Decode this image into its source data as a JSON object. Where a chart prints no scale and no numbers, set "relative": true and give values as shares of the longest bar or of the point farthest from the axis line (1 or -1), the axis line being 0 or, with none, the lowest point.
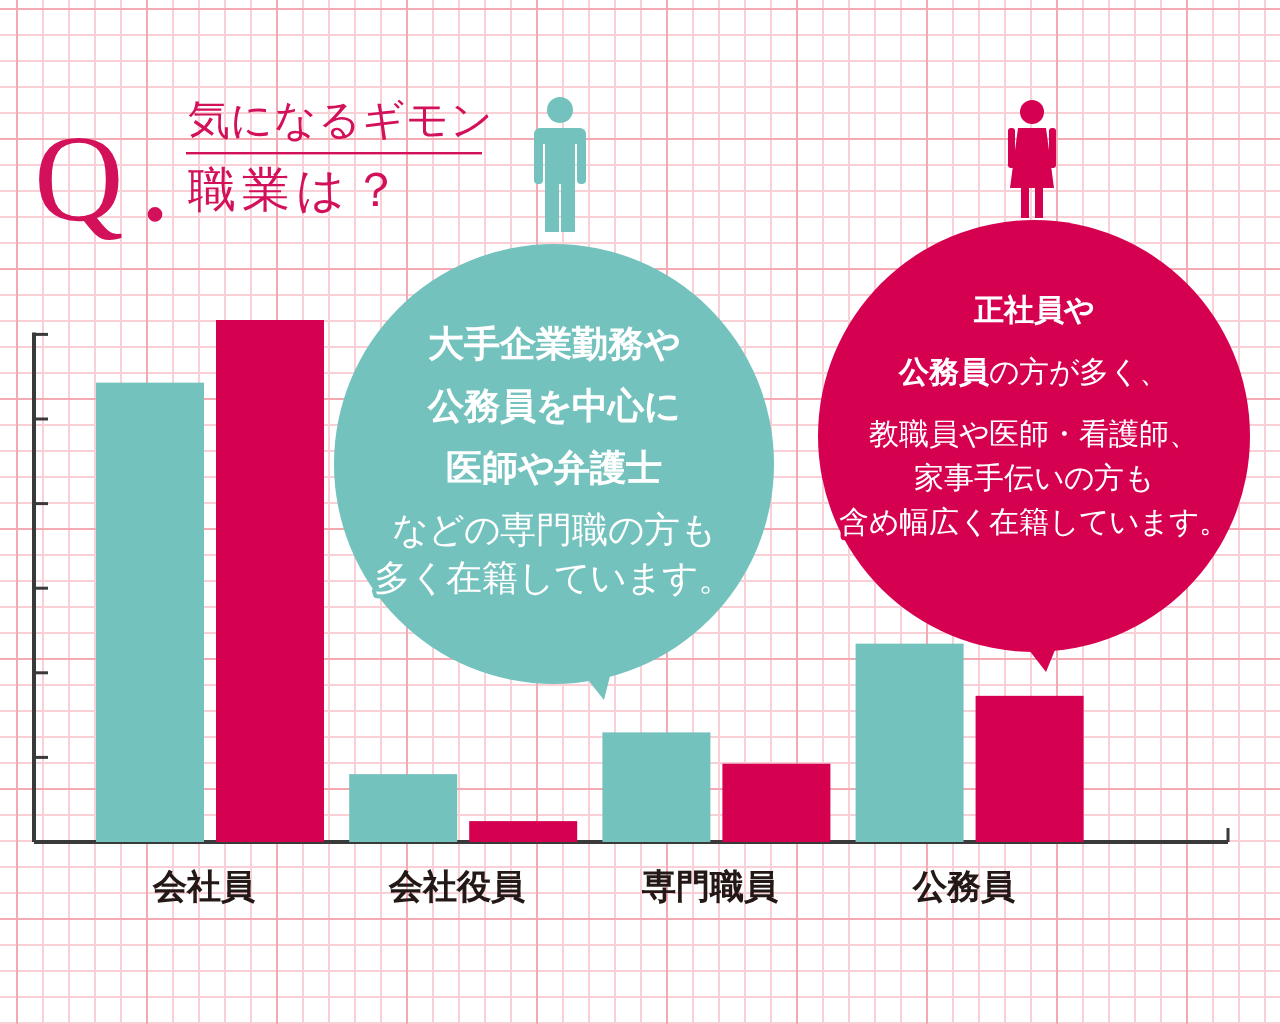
{
  "chart_data": {
    "type": "bar",
    "title": "気になるギモン",
    "subtitle": "職業は？",
    "categories": [
      "会社員",
      "会社役員",
      "専門職員",
      "公務員"
    ],
    "relative": true,
    "series": [
      {
        "color": "#74c2be",
        "values": [
          0.88,
          0.13,
          0.21,
          0.38
        ]
      },
      {
        "color": "#d60050",
        "values": [
          1,
          0.04,
          0.15,
          0.28
        ]
      }
    ],
    "annotations": [
      "Q.",
      "**大手企業勤務や**",
      "**公務員を中心に**",
      "**医師や弁護士**",
      "などの専門職の方も",
      "多く在籍しています。",
      "**正社員や**",
      "**公務員**の方が多く、",
      "教職員や医師・看護師、",
      "家事手伝いの方も",
      "含め幅広く在籍しています。"
    ]
  }
}
